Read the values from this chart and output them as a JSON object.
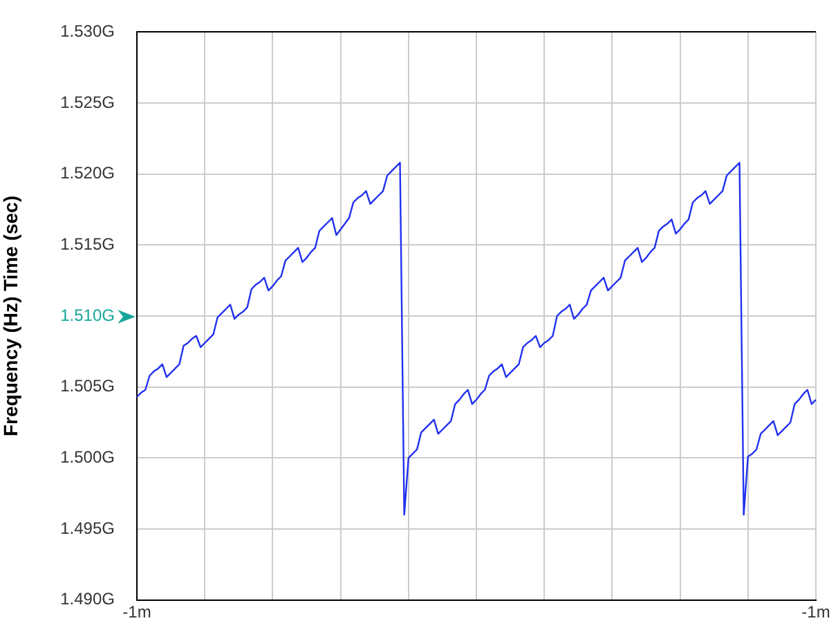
{
  "chart_data": {
    "type": "line",
    "ylabel": "Frequency (Hz) Time (sec)",
    "categories": [
      "-1m",
      null,
      null,
      null,
      null,
      null,
      null,
      null,
      null,
      null,
      null,
      null,
      null,
      null,
      null,
      null,
      null,
      null,
      null,
      null,
      null,
      null,
      null,
      null,
      null,
      null,
      null,
      null,
      null,
      null,
      null,
      null,
      null,
      null,
      null,
      null,
      null,
      null,
      null,
      null,
      null,
      null,
      null,
      null,
      null,
      null,
      null,
      null,
      null,
      null,
      null,
      null,
      null,
      null,
      null,
      null,
      null,
      null,
      null,
      null,
      null,
      null,
      null,
      null,
      null,
      null,
      null,
      null,
      null,
      null,
      null,
      null,
      null,
      null,
      null,
      null,
      null,
      null,
      null,
      null,
      null,
      null,
      null,
      null,
      null,
      null,
      null,
      null,
      null,
      null,
      null,
      null,
      null,
      null,
      null,
      null,
      null,
      null,
      null,
      null,
      null,
      null,
      null,
      null,
      null,
      null,
      null,
      null,
      null,
      null,
      null,
      null,
      null,
      null,
      null,
      null,
      null,
      null,
      null,
      null,
      null,
      null,
      null,
      null,
      null,
      null,
      null,
      null,
      null,
      null,
      null,
      null,
      null,
      null,
      null,
      null,
      null,
      null,
      null,
      null,
      null,
      null,
      null,
      null,
      null,
      null,
      null,
      null,
      null,
      null,
      null,
      null,
      null,
      null,
      null,
      null,
      null,
      null,
      null,
      null,
      "-1m"
    ],
    "series": [
      {
        "color": "#2030f0",
        "values": [
          1.5043,
          1.5046,
          1.5048,
          1.5058,
          1.5061,
          1.5063,
          1.5066,
          1.5057,
          1.506,
          1.5063,
          1.5066,
          1.5079,
          1.5081,
          1.5084,
          1.5086,
          1.5078,
          1.5081,
          1.5084,
          1.5087,
          1.5099,
          1.5102,
          1.5105,
          1.5108,
          1.5098,
          1.5101,
          1.5103,
          1.5106,
          1.5119,
          1.5122,
          1.5124,
          1.5127,
          1.5118,
          1.5121,
          1.5125,
          1.5128,
          1.5139,
          1.5142,
          1.5145,
          1.5148,
          1.5138,
          1.5141,
          1.5145,
          1.5148,
          1.516,
          1.5163,
          1.5166,
          1.5169,
          1.5157,
          1.5161,
          1.5165,
          1.5169,
          1.518,
          1.5183,
          1.5185,
          1.5188,
          1.5179,
          1.5182,
          1.5185,
          1.5188,
          1.5199,
          1.5202,
          1.5205,
          1.5208,
          1.496,
          1.5,
          1.5003,
          1.5006,
          1.5018,
          1.5021,
          1.5024,
          1.5027,
          1.5017,
          1.502,
          1.5023,
          1.5026,
          1.5038,
          1.5041,
          1.5045,
          1.5048,
          1.5038,
          1.5041,
          1.5045,
          1.5048,
          1.5058,
          1.5061,
          1.5063,
          1.5066,
          1.5057,
          1.506,
          1.5063,
          1.5066,
          1.5078,
          1.5081,
          1.5083,
          1.5086,
          1.5078,
          1.5081,
          1.5083,
          1.5086,
          1.51,
          1.5103,
          1.5105,
          1.5108,
          1.5098,
          1.5101,
          1.5105,
          1.5108,
          1.5118,
          1.5121,
          1.5124,
          1.5127,
          1.5118,
          1.5121,
          1.5124,
          1.5127,
          1.5139,
          1.5142,
          1.5145,
          1.5148,
          1.5138,
          1.5141,
          1.5145,
          1.5148,
          1.516,
          1.5163,
          1.5165,
          1.5168,
          1.5158,
          1.5161,
          1.5165,
          1.5168,
          1.518,
          1.5183,
          1.5185,
          1.5188,
          1.5179,
          1.5182,
          1.5185,
          1.5188,
          1.5199,
          1.5202,
          1.5205,
          1.5208,
          1.496,
          1.5001,
          1.5003,
          1.5006,
          1.5017,
          1.502,
          1.5023,
          1.5026,
          1.5016,
          1.5019,
          1.5022,
          1.5025,
          1.5038,
          1.5041,
          1.5045,
          1.5048,
          1.5038,
          1.5041
        ]
      }
    ],
    "ylim": [
      1.49,
      1.53
    ],
    "yticks": [
      {
        "value": 1.49,
        "label": "1.490G"
      },
      {
        "value": 1.495,
        "label": "1.495G"
      },
      {
        "value": 1.5,
        "label": "1.500G"
      },
      {
        "value": 1.505,
        "label": "1.505G"
      },
      {
        "value": 1.51,
        "label": "1.510G"
      },
      {
        "value": 1.515,
        "label": "1.515G"
      },
      {
        "value": 1.52,
        "label": "1.520G"
      },
      {
        "value": 1.525,
        "label": "1.525G"
      },
      {
        "value": 1.53,
        "label": "1.530G"
      }
    ],
    "grid": true,
    "legend": false,
    "marker": "none",
    "line_style": "solid"
  }
}
